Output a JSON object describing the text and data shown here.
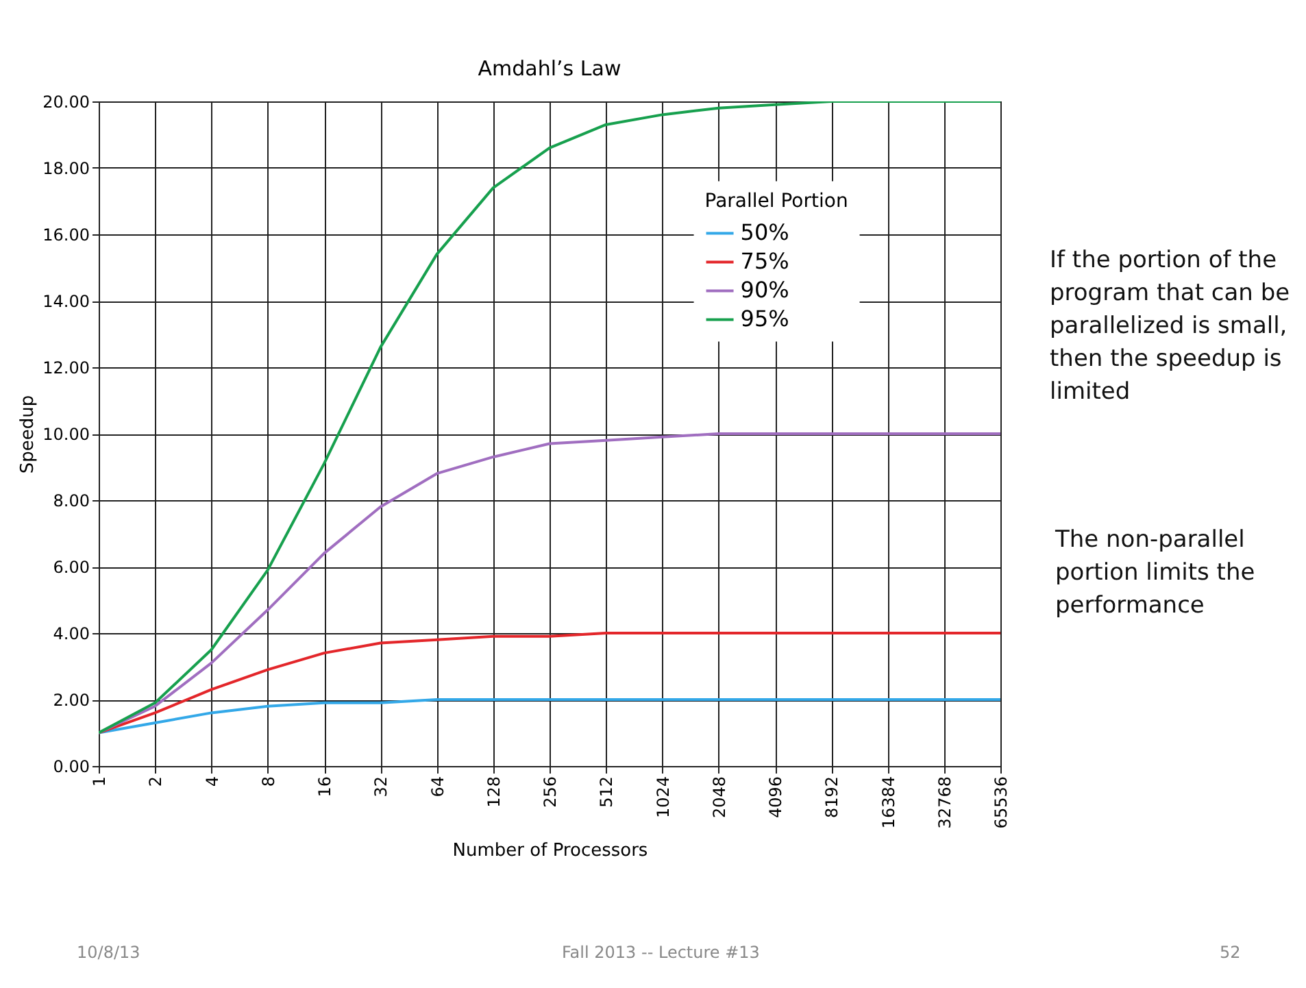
{
  "chart_data": {
    "type": "line",
    "title": "Amdahl’s Law",
    "xlabel": "Number of Processors",
    "ylabel": "Speedup",
    "legend_title": "Parallel Portion",
    "categories": [
      "1",
      "2",
      "4",
      "8",
      "16",
      "32",
      "64",
      "128",
      "256",
      "512",
      "1024",
      "2048",
      "4096",
      "8192",
      "16384",
      "32768",
      "65536"
    ],
    "series": [
      {
        "name": "50%",
        "color": "#33a8e8",
        "values": [
          1.0,
          1.3,
          1.6,
          1.8,
          1.9,
          1.9,
          2.0,
          2.0,
          2.0,
          2.0,
          2.0,
          2.0,
          2.0,
          2.0,
          2.0,
          2.0,
          2.0
        ]
      },
      {
        "name": "75%",
        "color": "#e3262a",
        "values": [
          1.0,
          1.6,
          2.3,
          2.9,
          3.4,
          3.7,
          3.8,
          3.9,
          3.9,
          4.0,
          4.0,
          4.0,
          4.0,
          4.0,
          4.0,
          4.0,
          4.0
        ]
      },
      {
        "name": "90%",
        "color": "#a06ec0",
        "values": [
          1.0,
          1.8,
          3.1,
          4.7,
          6.4,
          7.8,
          8.8,
          9.3,
          9.7,
          9.8,
          9.9,
          10.0,
          10.0,
          10.0,
          10.0,
          10.0,
          10.0
        ]
      },
      {
        "name": "95%",
        "color": "#17a04e",
        "values": [
          1.0,
          1.9,
          3.5,
          5.9,
          9.1,
          12.6,
          15.4,
          17.4,
          18.6,
          19.3,
          19.6,
          19.8,
          19.9,
          20.0,
          20.0,
          20.0,
          20.0
        ]
      }
    ],
    "ylim": [
      0,
      20
    ],
    "yticks": [
      {
        "value": 0,
        "label": "0.00"
      },
      {
        "value": 2,
        "label": "2.00"
      },
      {
        "value": 4,
        "label": "4.00"
      },
      {
        "value": 6,
        "label": "6.00"
      },
      {
        "value": 8,
        "label": "8.00"
      },
      {
        "value": 10,
        "label": "10.00"
      },
      {
        "value": 12,
        "label": "12.00"
      },
      {
        "value": 14,
        "label": "14.00"
      },
      {
        "value": 16,
        "label": "16.00"
      },
      {
        "value": 18,
        "label": "18.00"
      },
      {
        "value": 20,
        "label": "20.00"
      }
    ],
    "grid": true,
    "legend": "top right",
    "annotations": [
      "If the portion of the program that can be parallelized is small, then the speedup is limited",
      "The non-parallel portion limits the performance",
      "10/8/13",
      "Fall 2013 -- Lecture #13",
      "52"
    ]
  }
}
